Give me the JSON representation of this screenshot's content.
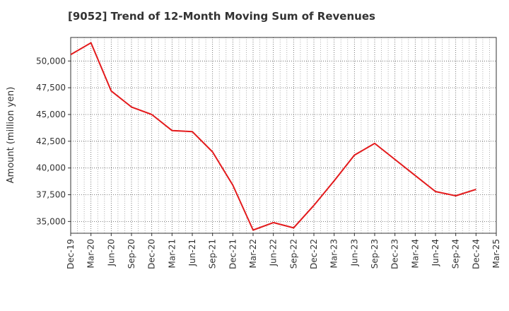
{
  "chart_data": {
    "type": "line",
    "title": "[9052]  Trend of 12-Month Moving Sum of Revenues",
    "xlabel": "",
    "ylabel": "Amount (million yen)",
    "ylim": [
      33900,
      52200
    ],
    "grid": true,
    "x_ticks": [
      "Dec-19",
      "Mar-20",
      "Jun-20",
      "Sep-20",
      "Dec-20",
      "Mar-21",
      "Jun-21",
      "Sep-21",
      "Dec-21",
      "Mar-22",
      "Jun-22",
      "Sep-22",
      "Dec-22",
      "Mar-23",
      "Jun-23",
      "Sep-23",
      "Dec-23",
      "Mar-24",
      "Jun-24",
      "Sep-24",
      "Dec-24",
      "Mar-25"
    ],
    "y_ticks": [
      35000,
      37500,
      40000,
      42500,
      45000,
      47500,
      50000
    ],
    "y_tick_labels": [
      "35,000",
      "37,500",
      "40,000",
      "42,500",
      "45,000",
      "47,500",
      "50,000"
    ],
    "series": [
      {
        "color": "#e31a1c",
        "x": [
          "Dec-19",
          "Mar-20",
          "Jun-20",
          "Sep-20",
          "Dec-20",
          "Mar-21",
          "Jun-21",
          "Sep-21",
          "Dec-21",
          "Mar-22",
          "Jun-22",
          "Sep-22",
          "Dec-22",
          "Mar-23",
          "Jun-23",
          "Sep-23",
          "Dec-23",
          "Mar-24",
          "Jun-24",
          "Sep-24",
          "Dec-24"
        ],
        "values": [
          50600,
          51700,
          47200,
          45700,
          45000,
          43500,
          43400,
          41500,
          38400,
          34200,
          34900,
          34400,
          36500,
          38800,
          41200,
          42300,
          40800,
          39300,
          37800,
          37400,
          38000
        ]
      }
    ]
  }
}
